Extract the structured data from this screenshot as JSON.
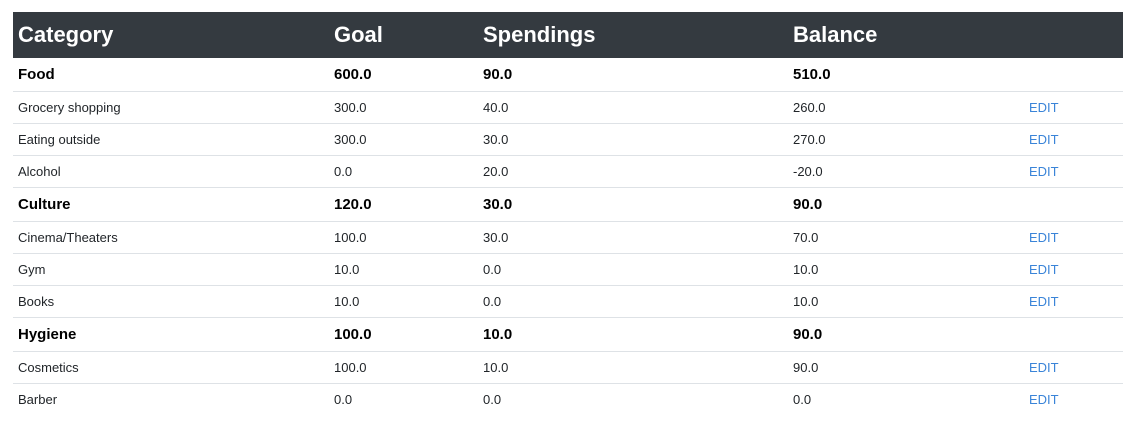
{
  "table": {
    "headers": {
      "category": "Category",
      "goal": "Goal",
      "spendings": "Spendings",
      "balance": "Balance"
    },
    "edit_label": "EDIT",
    "groups": [
      {
        "name": "Food",
        "goal": "600.0",
        "spendings": "90.0",
        "balance": "510.0",
        "items": [
          {
            "name": "Grocery shopping",
            "goal": "300.0",
            "spendings": "40.0",
            "balance": "260.0"
          },
          {
            "name": "Eating outside",
            "goal": "300.0",
            "spendings": "30.0",
            "balance": "270.0"
          },
          {
            "name": "Alcohol",
            "goal": "0.0",
            "spendings": "20.0",
            "balance": "-20.0"
          }
        ]
      },
      {
        "name": "Culture",
        "goal": "120.0",
        "spendings": "30.0",
        "balance": "90.0",
        "items": [
          {
            "name": "Cinema/Theaters",
            "goal": "100.0",
            "spendings": "30.0",
            "balance": "70.0"
          },
          {
            "name": "Gym",
            "goal": "10.0",
            "spendings": "0.0",
            "balance": "10.0"
          },
          {
            "name": "Books",
            "goal": "10.0",
            "spendings": "0.0",
            "balance": "10.0"
          }
        ]
      },
      {
        "name": "Hygiene",
        "goal": "100.0",
        "spendings": "10.0",
        "balance": "90.0",
        "items": [
          {
            "name": "Cosmetics",
            "goal": "100.0",
            "spendings": "10.0",
            "balance": "90.0"
          },
          {
            "name": "Barber",
            "goal": "0.0",
            "spendings": "0.0",
            "balance": "0.0"
          }
        ]
      }
    ]
  }
}
